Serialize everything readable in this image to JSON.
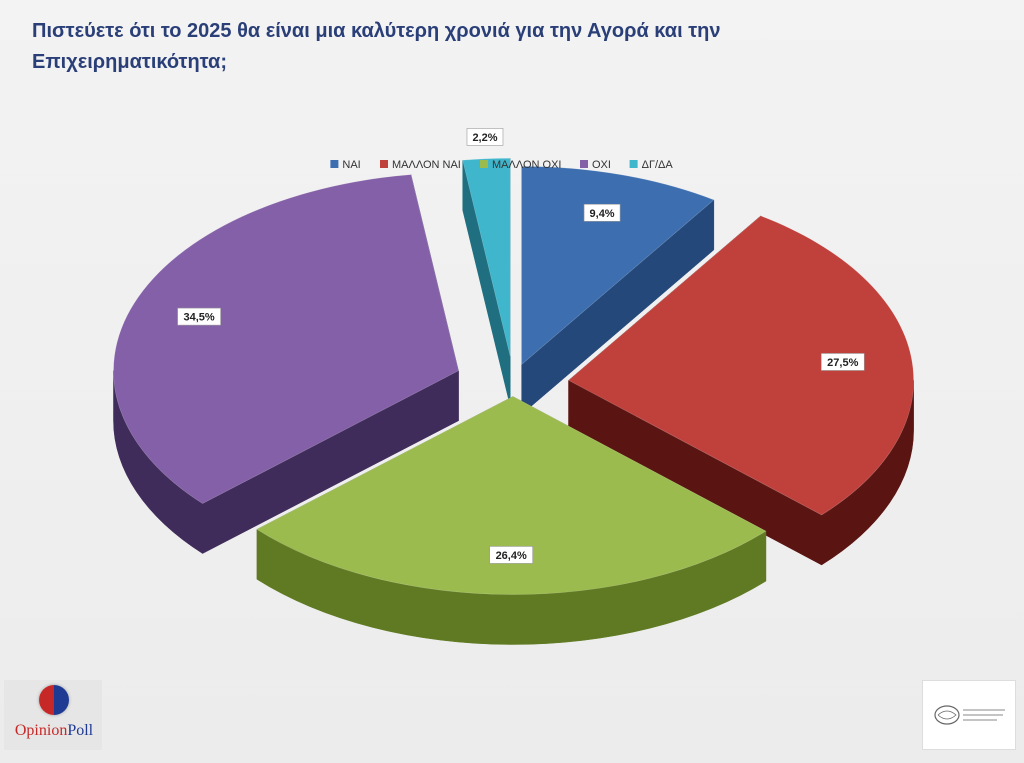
{
  "title_line1": "Πιστεύετε ότι το 2025 θα είναι μια καλύτερη χρονιά για την Αγορά και την",
  "title_line2": "Επιχειρηματικότητα;",
  "brand": {
    "name_part1": "Opinion",
    "name_part2": "Poll"
  },
  "chart_data": {
    "type": "pie",
    "style": "3d-exploded",
    "legend_position": "top",
    "categories": [
      "ΝΑΙ",
      "ΜΑΛΛΟΝ ΝΑΙ",
      "ΜΑΛΛΟΝ ΟΧΙ",
      "ΟΧΙ",
      "ΔΓ/ΔΑ"
    ],
    "values": [
      9.4,
      27.5,
      26.4,
      34.5,
      2.2
    ],
    "labels": [
      "9,4%",
      "27,5%",
      "26,4%",
      "34,5%",
      "2,2%"
    ],
    "colors": [
      "#3d6fb0",
      "#c0403c",
      "#9bbb4e",
      "#8460a8",
      "#3fb6cc"
    ],
    "side_colors": [
      "#24487a",
      "#5a1412",
      "#5f7a22",
      "#3f2c5a",
      "#1f6f80"
    ]
  }
}
